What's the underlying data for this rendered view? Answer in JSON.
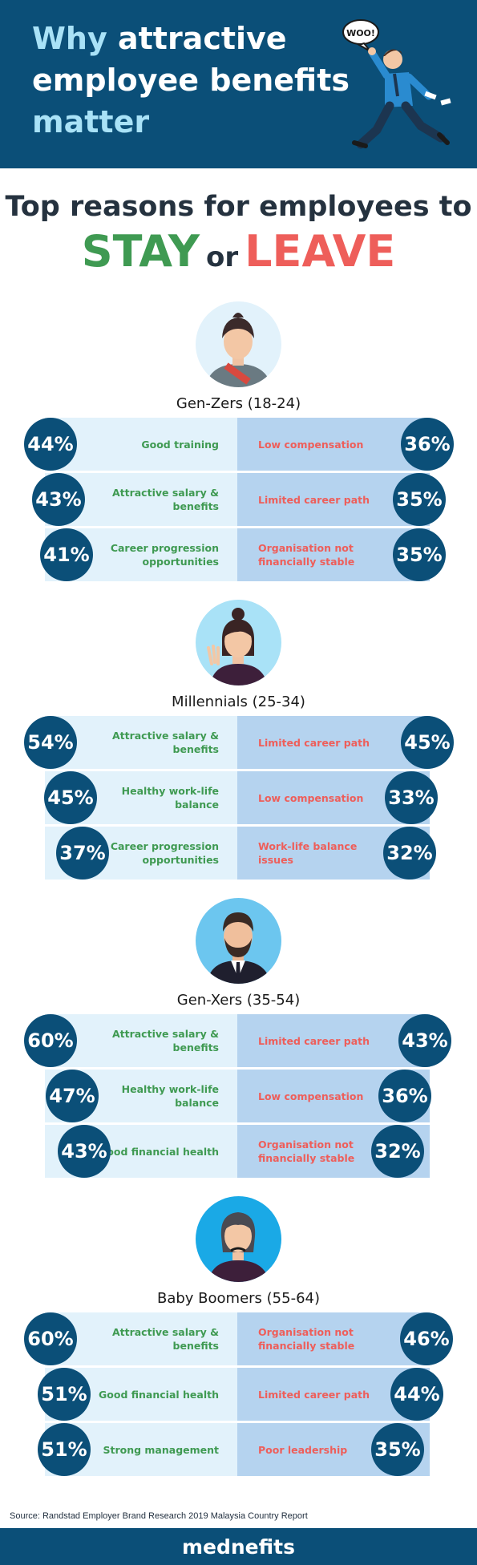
{
  "header": {
    "title_line1_highlight": "Why ",
    "title_line1_rest": "attractive",
    "title_line2": "employee benefits",
    "title_line3": "matter",
    "mascot_bubble": "WOO!"
  },
  "subheading": {
    "line1": "Top reasons for employees to",
    "stay": "STAY",
    "or": "or",
    "leave": "LEAVE"
  },
  "groups": [
    {
      "label": "Gen-Zers (18-24)",
      "rows": [
        {
          "stay_pct": "44%",
          "stay": "Good training",
          "leave": "Low compensation",
          "leave_pct": "36%"
        },
        {
          "stay_pct": "43%",
          "stay": "Attractive salary & benefits",
          "leave": "Limited career path",
          "leave_pct": "35%"
        },
        {
          "stay_pct": "41%",
          "stay": "Career progression opportunities",
          "leave": "Organisation not financially stable",
          "leave_pct": "35%"
        }
      ]
    },
    {
      "label": "Millennials (25-34)",
      "rows": [
        {
          "stay_pct": "54%",
          "stay": "Attractive salary & benefits",
          "leave": "Limited career path",
          "leave_pct": "45%"
        },
        {
          "stay_pct": "45%",
          "stay": "Healthy work-life balance",
          "leave": "Low compensation",
          "leave_pct": "33%"
        },
        {
          "stay_pct": "37%",
          "stay": "Career progression opportunities",
          "leave": "Work-life balance issues",
          "leave_pct": "32%"
        }
      ]
    },
    {
      "label": "Gen-Xers (35-54)",
      "rows": [
        {
          "stay_pct": "60%",
          "stay": "Attractive salary & benefits",
          "leave": "Limited career path",
          "leave_pct": "43%"
        },
        {
          "stay_pct": "47%",
          "stay": "Healthy work-life balance",
          "leave": "Low compensation",
          "leave_pct": "36%"
        },
        {
          "stay_pct": "43%",
          "stay": "Good financial health",
          "leave": "Organisation not financially stable",
          "leave_pct": "32%"
        }
      ]
    },
    {
      "label": "Baby Boomers (55-64)",
      "rows": [
        {
          "stay_pct": "60%",
          "stay": "Attractive salary & benefits",
          "leave": "Organisation not financially stable",
          "leave_pct": "46%"
        },
        {
          "stay_pct": "51%",
          "stay": "Good financial health",
          "leave": "Limited career path",
          "leave_pct": "44%"
        },
        {
          "stay_pct": "51%",
          "stay": "Strong management",
          "leave": "Poor leadership",
          "leave_pct": "35%"
        }
      ]
    }
  ],
  "source": "Source: Randstad Employer Brand Research 2019 Malaysia Country Report",
  "footer": {
    "logo": "mednefits"
  },
  "colors": {
    "navy": "#0b4f78",
    "stay_green": "#3f9a52",
    "leave_red": "#ee5e5a",
    "stay_bg": "#e2f2fb",
    "leave_bg": "#b5d3ef"
  }
}
